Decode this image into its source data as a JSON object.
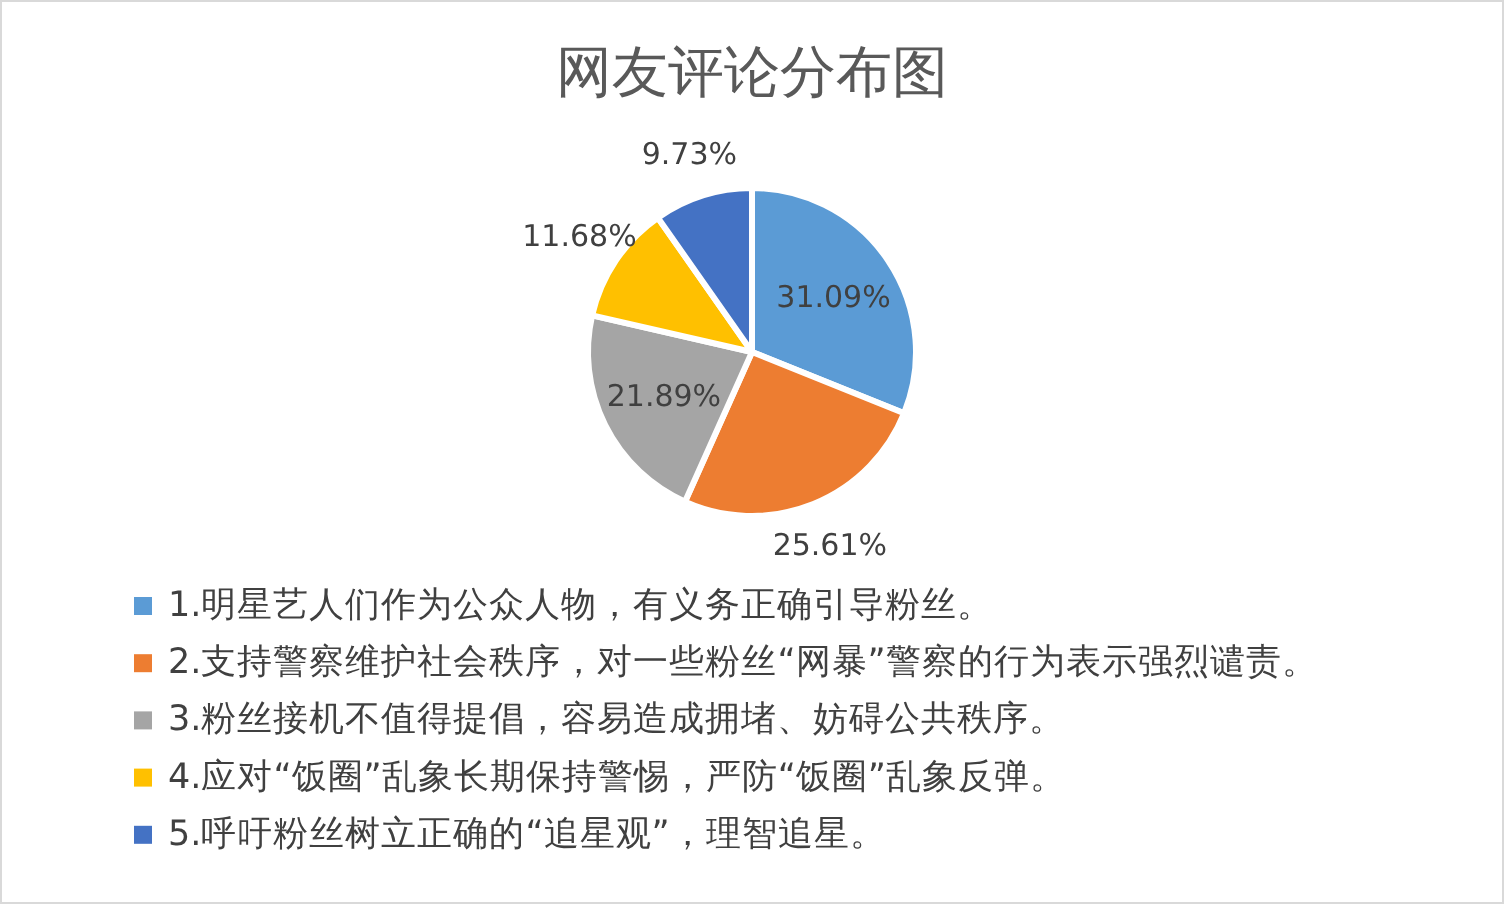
{
  "chart_data": {
    "type": "pie",
    "title": "网友评论分布图",
    "categories": [
      "1.明星艺人们作为公众人物，有义务正确引导粉丝。",
      "2.支持警察维护社会秩序，对一些粉丝“网暴”警察的行为表示强烈谴责。",
      "3.粉丝接机不值得提倡，容易造成拥堵、妨碍公共秩序。",
      "4.应对“饭圈”乱象长期保持警惕，严防“饭圈”乱象反弹。",
      "5.呼吁粉丝树立正确的“追星观”，理智追星。"
    ],
    "values": [
      31.09,
      25.61,
      21.89,
      11.68,
      9.73
    ],
    "colors": [
      "#5b9bd5",
      "#ed7d31",
      "#a5a5a5",
      "#ffc000",
      "#4472c4"
    ],
    "value_labels": [
      "31.09%",
      "25.61%",
      "21.89%",
      "11.68%",
      "9.73%"
    ],
    "legend": "bottom"
  }
}
